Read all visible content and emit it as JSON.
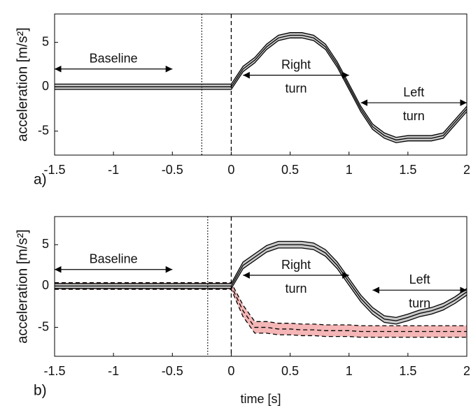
{
  "chart_data": [
    {
      "type": "line",
      "panel_label": "a)",
      "ylabel": "acceleration  [m/s²]",
      "x": [
        -1.5,
        -1.4,
        -1.3,
        -1.2,
        -1.1,
        -1.0,
        -0.9,
        -0.8,
        -0.7,
        -0.6,
        -0.5,
        -0.4,
        -0.3,
        -0.2,
        -0.1,
        0,
        0.1,
        0.2,
        0.3,
        0.4,
        0.5,
        0.6,
        0.7,
        0.8,
        0.9,
        1.0,
        1.1,
        1.2,
        1.3,
        1.4,
        1.5,
        1.6,
        1.7,
        1.8,
        1.9,
        2.0
      ],
      "series": [
        {
          "color": "#000000",
          "band_color": "#c8c8c8",
          "line_style": "solid",
          "values": [
            0,
            0,
            0,
            0,
            0,
            0,
            0,
            0,
            0,
            0,
            0,
            0,
            0,
            0,
            0,
            0,
            2,
            3,
            4.5,
            5.5,
            5.8,
            5.8,
            5.5,
            4.5,
            2.5,
            0,
            -2.5,
            -4.5,
            -5.5,
            -6,
            -5.8,
            -5.8,
            -5.8,
            -5.5,
            -4,
            -2.5
          ],
          "error": [
            0.3,
            0.3,
            0.3,
            0.3,
            0.3,
            0.3,
            0.3,
            0.3,
            0.3,
            0.3,
            0.3,
            0.3,
            0.3,
            0.3,
            0.3,
            0.3,
            0.3,
            0.3,
            0.3,
            0.3,
            0.3,
            0.3,
            0.3,
            0.3,
            0.3,
            0.3,
            0.3,
            0.3,
            0.3,
            0.3,
            0.3,
            0.3,
            0.3,
            0.3,
            0.3,
            0.3
          ]
        }
      ],
      "xlim": [
        -1.5,
        2
      ],
      "xticks": [
        -1.5,
        -1,
        -0.5,
        0,
        0.5,
        1,
        1.5,
        2
      ],
      "ylim": [
        -7.7,
        8.2
      ],
      "yticks": [
        -5,
        0,
        5
      ],
      "vlines": [
        {
          "x": -0.25,
          "style": "dotted"
        },
        {
          "x": 0,
          "style": "dashed"
        }
      ],
      "annotations": [
        {
          "lines": [
            "Baseline"
          ],
          "x0": -1.5,
          "x1": -0.5,
          "y": 2
        },
        {
          "lines": [
            "Right",
            "turn"
          ],
          "x0": 0.1,
          "x1": 1.0,
          "y": 1.3
        },
        {
          "lines": [
            "Left",
            "turn"
          ],
          "x0": 1.1,
          "x1": 2.0,
          "y": -1.8
        }
      ]
    },
    {
      "type": "line",
      "panel_label": "b)",
      "ylabel": "acceleration  [m/s²]",
      "xlabel": "time [s]",
      "x": [
        -1.5,
        -1.4,
        -1.3,
        -1.2,
        -1.1,
        -1.0,
        -0.9,
        -0.8,
        -0.7,
        -0.6,
        -0.5,
        -0.4,
        -0.3,
        -0.2,
        -0.1,
        0,
        0.1,
        0.2,
        0.3,
        0.4,
        0.5,
        0.6,
        0.7,
        0.8,
        0.9,
        1.0,
        1.1,
        1.2,
        1.3,
        1.4,
        1.5,
        1.6,
        1.7,
        1.8,
        1.9,
        2.0
      ],
      "series": [
        {
          "color": "#000000",
          "band_color": "#f4b6b6",
          "line_style": "dashed",
          "values": [
            0,
            0,
            0,
            0,
            0,
            0,
            0,
            0,
            0,
            0,
            0,
            0,
            0,
            0,
            0,
            0,
            -3,
            -5,
            -5,
            -5.2,
            -5.2,
            -5.3,
            -5.3,
            -5.4,
            -5.4,
            -5.4,
            -5.5,
            -5.5,
            -5.5,
            -5.5,
            -5.5,
            -5.5,
            -5.5,
            -5.5,
            -5.5,
            -5.5
          ],
          "error": [
            0.4,
            0.4,
            0.4,
            0.4,
            0.4,
            0.4,
            0.4,
            0.4,
            0.4,
            0.4,
            0.4,
            0.4,
            0.4,
            0.4,
            0.4,
            0.4,
            0.7,
            0.7,
            0.7,
            0.7,
            0.7,
            0.7,
            0.7,
            0.7,
            0.7,
            0.7,
            0.7,
            0.7,
            0.7,
            0.7,
            0.7,
            0.7,
            0.7,
            0.7,
            0.7,
            0.7
          ]
        },
        {
          "color": "#000000",
          "band_color": "#c8c8c8",
          "line_style": "solid",
          "values": [
            0,
            0,
            0,
            0,
            0,
            0,
            0,
            0,
            0,
            0,
            0,
            0,
            0,
            0,
            0,
            0,
            2.5,
            3.5,
            4.5,
            5,
            5,
            5,
            4.8,
            4,
            2.5,
            0.5,
            -1.5,
            -3,
            -4,
            -4.2,
            -3.8,
            -3.3,
            -3,
            -2.5,
            -1.7,
            -0.7
          ],
          "error": [
            0.3,
            0.3,
            0.3,
            0.3,
            0.3,
            0.3,
            0.3,
            0.3,
            0.3,
            0.3,
            0.3,
            0.3,
            0.3,
            0.3,
            0.3,
            0.3,
            0.4,
            0.4,
            0.4,
            0.4,
            0.4,
            0.4,
            0.4,
            0.4,
            0.4,
            0.4,
            0.4,
            0.4,
            0.4,
            0.4,
            0.4,
            0.4,
            0.4,
            0.4,
            0.4,
            0.4
          ]
        }
      ],
      "xlim": [
        -1.5,
        2
      ],
      "xticks": [
        -1.5,
        -1,
        -0.5,
        0,
        0.5,
        1,
        1.5,
        2
      ],
      "ylim": [
        -8.5,
        8.4
      ],
      "yticks": [
        -5,
        0,
        5
      ],
      "vlines": [
        {
          "x": -0.2,
          "style": "dotted"
        },
        {
          "x": 0,
          "style": "dashed"
        }
      ],
      "annotations": [
        {
          "lines": [
            "Baseline"
          ],
          "x0": -1.5,
          "x1": -0.5,
          "y": 2
        },
        {
          "lines": [
            "Right",
            "turn"
          ],
          "x0": 0.1,
          "x1": 1.0,
          "y": 1.3
        },
        {
          "lines": [
            "Left",
            "turn"
          ],
          "x0": 1.2,
          "x1": 2.0,
          "y": -0.5
        }
      ]
    }
  ]
}
